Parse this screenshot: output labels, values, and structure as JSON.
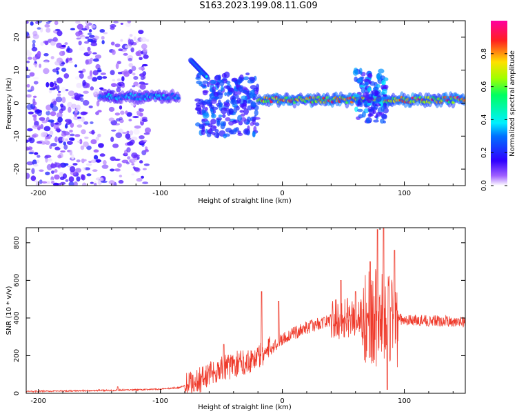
{
  "title": "S163.2023.199.08.11.G09",
  "chart_data": [
    {
      "type": "heatmap",
      "xlabel": "Height of straight line (km)",
      "ylabel": "Frequency (Hz)",
      "xlim": [
        -210,
        150
      ],
      "ylim": [
        -25,
        25
      ],
      "xticks": [
        -200,
        -100,
        0,
        100
      ],
      "xtick_labels": [
        "-200",
        "-100",
        "0",
        "100"
      ],
      "yticks": [
        -20,
        -10,
        0,
        10,
        20
      ],
      "ytick_labels": [
        "-20",
        "-10",
        "0",
        "10",
        "20"
      ],
      "colorbar": {
        "label": "Normalized spectral amplitude",
        "range": [
          0,
          1
        ],
        "ticks": [
          0.0,
          0.2,
          0.4,
          0.6,
          0.8
        ],
        "tick_labels": [
          "0.0",
          "0.2",
          "0.4",
          "0.6",
          "0.8"
        ],
        "colormap": "rainbow (white to purple to blue to cyan to green to yellow to red to magenta)"
      },
      "features": [
        {
          "kind": "noise",
          "x_range": [
            -210,
            -145
          ],
          "amplitude": 0.15
        },
        {
          "kind": "noise",
          "x_range": [
            -140,
            -110
          ],
          "amplitude": 0.12
        },
        {
          "kind": "ridge",
          "x_range": [
            -150,
            -85
          ],
          "frequency_hz": 2,
          "amplitude": 0.35
        },
        {
          "kind": "curve",
          "x_range": [
            -75,
            -62
          ],
          "frequency_from_hz": 13,
          "frequency_to_hz": 8,
          "amplitude": 0.4
        },
        {
          "kind": "cluster",
          "x_range": [
            -70,
            -20
          ],
          "frequency_range_hz": [
            -10,
            9
          ],
          "amplitude": 0.25
        },
        {
          "kind": "ridge",
          "x_range": [
            -20,
            150
          ],
          "frequency_hz": 1,
          "amplitude": 0.8
        },
        {
          "kind": "cluster",
          "x_range": [
            60,
            85
          ],
          "frequency_range_hz": [
            -6,
            10
          ],
          "amplitude": 0.3
        }
      ]
    },
    {
      "type": "line",
      "xlabel": "Height of straight line (km)",
      "ylabel": "SNR (10 * v/v)",
      "xlim": [
        -210,
        150
      ],
      "ylim": [
        0,
        880
      ],
      "xticks": [
        -200,
        -100,
        0,
        100
      ],
      "xtick_labels": [
        "-200",
        "-100",
        "0",
        "100"
      ],
      "yticks": [
        0,
        200,
        400,
        600,
        800
      ],
      "ytick_labels": [
        "0",
        "200",
        "400",
        "600",
        "800"
      ],
      "color": "#ef3b2c",
      "envelope": {
        "x": [
          -210,
          -180,
          -150,
          -120,
          -100,
          -85,
          -75,
          -65,
          -55,
          -45,
          -35,
          -25,
          -15,
          -5,
          0,
          10,
          20,
          30,
          40,
          50,
          60,
          70,
          80,
          90,
          100,
          120,
          150
        ],
        "y": [
          10,
          12,
          15,
          18,
          22,
          30,
          50,
          80,
          120,
          140,
          160,
          180,
          210,
          260,
          290,
          320,
          350,
          370,
          390,
          400,
          405,
          405,
          400,
          400,
          390,
          385,
          380
        ]
      },
      "bursts": [
        {
          "x": -135,
          "y": 35
        },
        {
          "x": -48,
          "y": 260
        },
        {
          "x": -17,
          "y": 540
        },
        {
          "x": -3,
          "y": 490
        },
        {
          "x": 48,
          "y": 600
        },
        {
          "x": 60,
          "y": 540
        },
        {
          "x": 72,
          "y": 700
        },
        {
          "x": 78,
          "y": 870
        },
        {
          "x": 83,
          "y": 880
        },
        {
          "x": 86,
          "y": 20
        },
        {
          "x": 92,
          "y": 760
        }
      ]
    }
  ]
}
